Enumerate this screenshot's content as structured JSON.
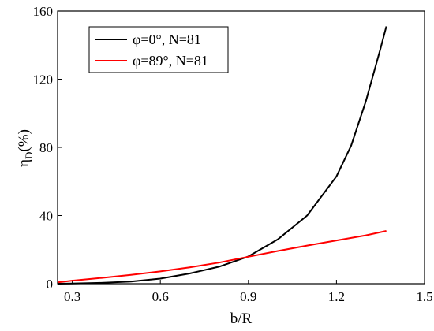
{
  "chart_data": {
    "type": "line",
    "xlabel": "b/R",
    "ylabel": "η",
    "ylabel_sub": "D",
    "ylabel_suffix": "(%)",
    "xlim": [
      0.25,
      1.5
    ],
    "ylim": [
      0,
      160
    ],
    "x_ticks": [
      0.3,
      0.6,
      0.9,
      1.2,
      1.5
    ],
    "x_tick_labels": [
      "0.3",
      "0.6",
      "0.9",
      "1.2",
      "1.5"
    ],
    "y_ticks": [
      0,
      40,
      80,
      120,
      160
    ],
    "y_tick_labels": [
      "0",
      "40",
      "80",
      "120",
      "160"
    ],
    "grid": false,
    "legend_position": "top-left",
    "series": [
      {
        "name": "φ=0°, N=81",
        "color": "#000000",
        "x": [
          0.25,
          0.3,
          0.4,
          0.5,
          0.6,
          0.7,
          0.8,
          0.9,
          1.0,
          1.1,
          1.2,
          1.25,
          1.3,
          1.35,
          1.37
        ],
        "y": [
          0,
          0.1,
          0.5,
          1.3,
          3,
          6,
          10,
          16,
          26,
          40,
          63,
          81,
          107,
          138,
          151
        ]
      },
      {
        "name": "φ=89°, N=81",
        "color": "#ff0000",
        "x": [
          0.25,
          0.3,
          0.4,
          0.5,
          0.6,
          0.7,
          0.8,
          0.9,
          1.0,
          1.1,
          1.2,
          1.3,
          1.37
        ],
        "y": [
          0.8,
          1.8,
          3.4,
          5.2,
          7.2,
          9.6,
          12.4,
          15.8,
          19.2,
          22.4,
          25.4,
          28.4,
          31
        ]
      }
    ]
  }
}
